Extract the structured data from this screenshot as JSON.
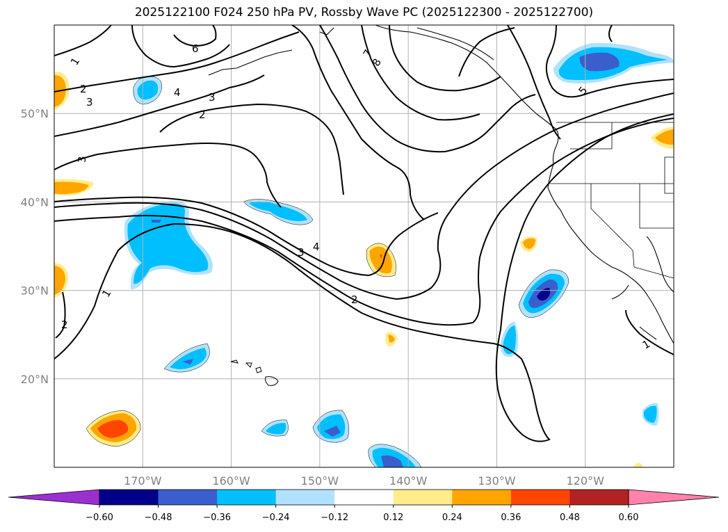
{
  "title": "2025122100 F024 250 hPa PV, Rossby Wave PC (2025122300 - 2025122700)",
  "map": {
    "lon_range": [
      -180,
      -110
    ],
    "lat_range": [
      10,
      60
    ],
    "lat_ticks": [
      {
        "value": 20,
        "label": "20°N"
      },
      {
        "value": 30,
        "label": "30°N"
      },
      {
        "value": 40,
        "label": "40°N"
      },
      {
        "value": 50,
        "label": "50°N"
      }
    ],
    "lon_ticks": [
      {
        "value": -170,
        "label": "170°W"
      },
      {
        "value": -160,
        "label": "160°W"
      },
      {
        "value": -150,
        "label": "150°W"
      },
      {
        "value": -140,
        "label": "140°W"
      },
      {
        "value": -130,
        "label": "130°W"
      },
      {
        "value": -120,
        "label": "120°W"
      }
    ],
    "gridlines": true
  },
  "colorbar": {
    "colors": [
      "#9b30d0",
      "#00008b",
      "#3a5fcd",
      "#00bfff",
      "#b0e2ff",
      "#ffffff",
      "#ffec8b",
      "#ffa500",
      "#ff4500",
      "#b22222",
      "#ff82ab"
    ],
    "tick_labels": [
      "−0.60",
      "−0.48",
      "−0.36",
      "−0.24",
      "−0.12",
      "0.12",
      "0.24",
      "0.36",
      "0.48",
      "0.60"
    ],
    "extend": "both"
  },
  "contour_labels": [
    "1",
    "2",
    "3",
    "4",
    "5",
    "6",
    "7",
    "8"
  ]
}
